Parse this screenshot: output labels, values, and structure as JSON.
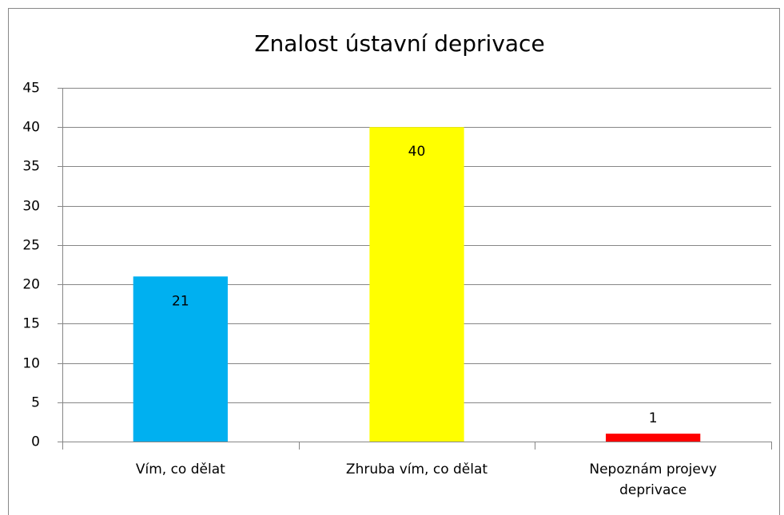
{
  "chart_data": {
    "type": "bar",
    "title": "Znalost ústavní deprivace",
    "categories": [
      "Vím, co dělat",
      "Zhruba vím, co dělat",
      "Nepoznám projevy deprivace"
    ],
    "values": [
      21,
      40,
      1
    ],
    "colors": [
      "#00b0f0",
      "#ffff00",
      "#ff0000"
    ],
    "ylim": [
      0,
      45
    ],
    "yticks": [
      0,
      5,
      10,
      15,
      20,
      25,
      30,
      35,
      40,
      45
    ],
    "grid": true
  }
}
